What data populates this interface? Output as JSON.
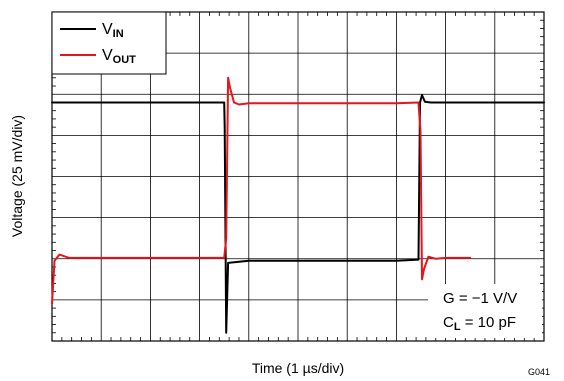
{
  "chart_data": {
    "type": "line",
    "title": "",
    "xlabel": "Time (1 µs/div)",
    "ylabel": "Voltage (25 mV/div)",
    "figure_id": "G041",
    "x_divisions": 10,
    "y_divisions": 8,
    "grid": true,
    "legend": {
      "placement": "top-left",
      "entries": [
        {
          "label": "V",
          "sub": "IN",
          "color": "#000000"
        },
        {
          "label": "V",
          "sub": "OUT",
          "color": "#e8141b"
        }
      ]
    },
    "annotations": {
      "gain": "G = −1 V/V",
      "cl_main": "C",
      "cl_sub": "L",
      "cl_value": " = 10 pF"
    },
    "series": [
      {
        "name": "VIN",
        "color": "#000000",
        "x": [
          0,
          3.5,
          3.51,
          3.54,
          3.58,
          4.0,
          7.0,
          7.45,
          7.48,
          7.52,
          7.58,
          7.7,
          10
        ],
        "y": [
          5.8,
          5.8,
          5.2,
          0.2,
          1.9,
          1.95,
          1.95,
          1.98,
          5.8,
          5.98,
          5.82,
          5.8,
          5.8
        ]
      },
      {
        "name": "VOUT",
        "color": "#e8141b",
        "x": [
          0,
          0.05,
          0.15,
          0.35,
          3.5,
          3.54,
          3.58,
          3.62,
          3.7,
          3.8,
          4.0,
          7.0,
          7.45,
          7.49,
          7.52,
          7.56,
          7.65,
          7.8,
          8.0,
          8.5
        ],
        "y": [
          0.9,
          1.95,
          2.1,
          2.02,
          2.02,
          2.5,
          6.4,
          6.15,
          5.8,
          5.75,
          5.78,
          5.78,
          5.8,
          5.1,
          1.5,
          1.75,
          2.05,
          2.0,
          2.02,
          2.02
        ]
      }
    ]
  }
}
